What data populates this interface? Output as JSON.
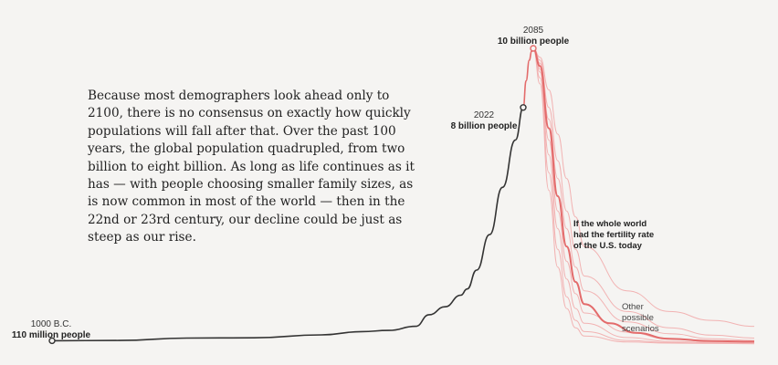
{
  "intro_text": "Because most demographers look ahead only to 2100, there is no consensus on exactly how quickly populations will fall after that. Over the past 100 years, the global population quadrupled, from two billion to eight billion. As long as life continues as it has — with people choosing smaller family sizes, as is now common in most of the world — then in the 22nd or 23rd century, our decline could be just as steep as our rise.",
  "markers": {
    "start": {
      "year": "1000 B.C.",
      "value": "110 million people"
    },
    "current": {
      "year": "2022",
      "value": "8 billion people"
    },
    "peak": {
      "year": "2085",
      "value": "10 billion people"
    }
  },
  "annotations": {
    "us_fertility": [
      "If the whole world",
      "had the fertility rate",
      "of the U.S. today"
    ],
    "other": [
      "Other",
      "possible",
      "scenarios"
    ]
  },
  "colors": {
    "history": "#333333",
    "projection": "#e36b6b",
    "scenario": "#f2b3b3",
    "background": "#f5f4f2"
  },
  "chart_data": {
    "type": "line",
    "title": "",
    "xlabel": "",
    "ylabel": "",
    "grid": false,
    "legend": "none",
    "units": "billion people",
    "ylim": [
      0,
      10.5
    ],
    "series": [
      {
        "role": "historical",
        "x": [
          -1000,
          -500,
          0,
          500,
          1000,
          1300,
          1500,
          1700,
          1800,
          1850,
          1900,
          1920,
          1950,
          1970,
          1990,
          2010,
          2022
        ],
        "y": [
          0.11,
          0.12,
          0.2,
          0.21,
          0.31,
          0.42,
          0.46,
          0.6,
          0.99,
          1.26,
          1.65,
          1.86,
          2.5,
          3.7,
          5.3,
          6.9,
          8.0
        ]
      },
      {
        "role": "projection",
        "x": [
          2022,
          2040,
          2060,
          2075,
          2085
        ],
        "y": [
          8.0,
          8.9,
          9.6,
          9.9,
          10.0
        ]
      },
      {
        "name": "If the whole world had the fertility rate of the U.S. today",
        "x": [
          2085,
          2100,
          2120,
          2140,
          2160,
          2180,
          2200,
          2230,
          2260,
          2300,
          2350,
          2400
        ],
        "y": [
          10.0,
          9.4,
          7.3,
          5.0,
          3.3,
          2.1,
          1.35,
          0.7,
          0.38,
          0.18,
          0.1,
          0.08
        ]
      },
      {
        "role": "scenario",
        "x": [
          2085,
          2100,
          2120,
          2140,
          2160,
          2180,
          2200,
          2250,
          2300,
          2350,
          2400
        ],
        "y": [
          10.0,
          9.7,
          8.6,
          7.1,
          5.6,
          4.3,
          3.3,
          1.8,
          1.1,
          0.8,
          0.6
        ]
      },
      {
        "role": "scenario",
        "x": [
          2085,
          2100,
          2120,
          2140,
          2160,
          2180,
          2200,
          2250,
          2300,
          2350,
          2400
        ],
        "y": [
          10.0,
          9.6,
          8.0,
          6.2,
          4.5,
          3.2,
          2.3,
          1.1,
          0.55,
          0.3,
          0.2
        ]
      },
      {
        "role": "scenario",
        "x": [
          2085,
          2100,
          2120,
          2140,
          2160,
          2180,
          2200,
          2250,
          2300,
          2350,
          2400
        ],
        "y": [
          10.0,
          9.5,
          7.6,
          5.6,
          3.9,
          2.6,
          1.8,
          0.75,
          0.35,
          0.18,
          0.12
        ]
      },
      {
        "role": "scenario",
        "x": [
          2085,
          2100,
          2120,
          2140,
          2160,
          2180,
          2200,
          2250,
          2300,
          2350,
          2400
        ],
        "y": [
          10.0,
          9.3,
          6.9,
          4.5,
          2.8,
          1.7,
          1.05,
          0.4,
          0.17,
          0.09,
          0.06
        ]
      },
      {
        "role": "scenario",
        "x": [
          2085,
          2100,
          2120,
          2140,
          2160,
          2180,
          2200,
          2250,
          2300,
          2350,
          2400
        ],
        "y": [
          10.0,
          9.2,
          6.4,
          3.9,
          2.2,
          1.2,
          0.7,
          0.22,
          0.09,
          0.05,
          0.04
        ]
      },
      {
        "role": "scenario",
        "x": [
          2085,
          2100,
          2120,
          2140,
          2160,
          2180,
          2200,
          2250,
          2300,
          2350,
          2400
        ],
        "y": [
          10.0,
          9.0,
          5.8,
          3.2,
          1.6,
          0.8,
          0.42,
          0.12,
          0.05,
          0.03,
          0.02
        ]
      },
      {
        "role": "scenario",
        "x": [
          2085,
          2100,
          2120,
          2140,
          2160,
          2180,
          2200,
          2250,
          2300,
          2350,
          2400
        ],
        "y": [
          10.0,
          8.8,
          5.2,
          2.6,
          1.2,
          0.55,
          0.27,
          0.07,
          0.03,
          0.02,
          0.01
        ]
      }
    ]
  }
}
